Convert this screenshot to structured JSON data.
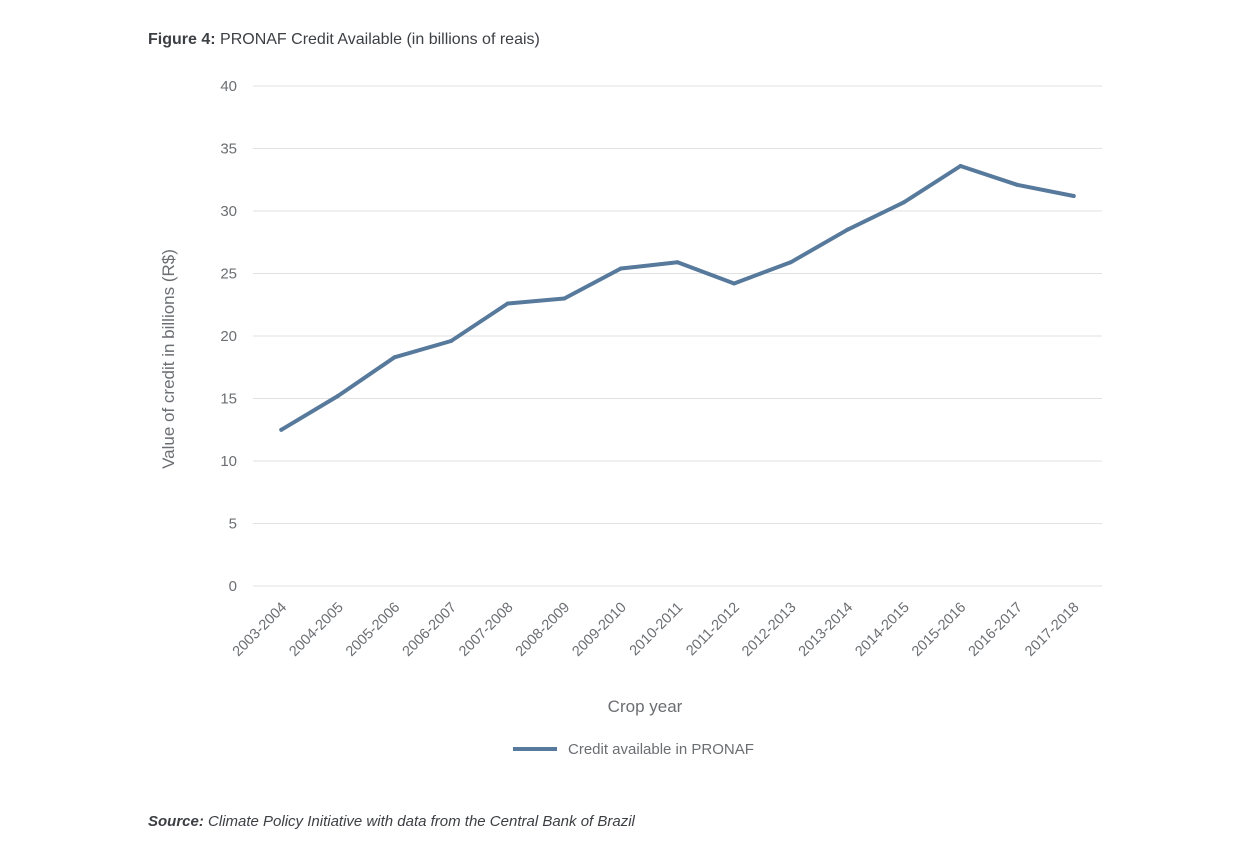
{
  "figure": {
    "label": "Figure 4:",
    "caption": "PRONAF Credit Available (in billions of reais)"
  },
  "source": {
    "label": "Source:",
    "text": "Climate Policy Initiative with data from the Central Bank of Brazil"
  },
  "colors": {
    "series": "#577a9c",
    "grid": "#e2e2e2"
  },
  "chart_data": {
    "type": "line",
    "title": "",
    "xlabel": "Crop year",
    "ylabel": "Value of credit in billions (R$)",
    "ylim": [
      0,
      40
    ],
    "yticks": [
      0,
      5,
      10,
      15,
      20,
      25,
      30,
      35,
      40
    ],
    "grid": "horizontal",
    "legend_position": "bottom",
    "categories": [
      "2003-2004",
      "2004-2005",
      "2005-2006",
      "2006-2007",
      "2007-2008",
      "2008-2009",
      "2009-2010",
      "2010-2011",
      "2011-2012",
      "2012-2013",
      "2013-2014",
      "2014-2015",
      "2015-2016",
      "2016-2017",
      "2017-2018"
    ],
    "series": [
      {
        "name": "Credit available in PRONAF",
        "values": [
          12.5,
          15.2,
          18.3,
          19.6,
          22.6,
          23.0,
          25.4,
          25.9,
          24.2,
          25.9,
          28.5,
          30.7,
          33.6,
          32.1,
          31.2
        ]
      }
    ]
  }
}
